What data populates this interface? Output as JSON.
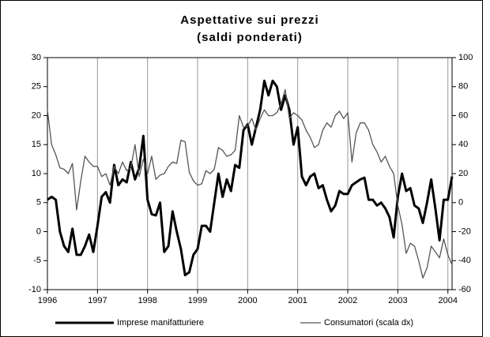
{
  "chart_data": {
    "type": "line",
    "title": "Aspettative sui prezzi",
    "subtitle": "(saldi ponderati)",
    "x": [
      0,
      1,
      2,
      3,
      4,
      5,
      6,
      7,
      8,
      9,
      10,
      11,
      12,
      13,
      14,
      15,
      16,
      17,
      18,
      19,
      20,
      21,
      22,
      23,
      24,
      25,
      26,
      27,
      28,
      29,
      30,
      31,
      32,
      33,
      34,
      35,
      36,
      37,
      38,
      39,
      40,
      41,
      42,
      43,
      44,
      45,
      46,
      47,
      48,
      49,
      50,
      51,
      52,
      53,
      54,
      55,
      56,
      57,
      58,
      59,
      60,
      61,
      62,
      63,
      64,
      65,
      66,
      67,
      68,
      69,
      70,
      71,
      72,
      73,
      74,
      75,
      76,
      77,
      78,
      79,
      80,
      81,
      82,
      83,
      84,
      85,
      86,
      87,
      88,
      89,
      90,
      91,
      92,
      93,
      94,
      95,
      96,
      97
    ],
    "xlim": [
      0,
      97
    ],
    "xticks": [
      {
        "value": 0,
        "label": "1996"
      },
      {
        "value": 12,
        "label": "1997"
      },
      {
        "value": 24,
        "label": "1998"
      },
      {
        "value": 36,
        "label": "1999"
      },
      {
        "value": 48,
        "label": "2000"
      },
      {
        "value": 60,
        "label": "2001"
      },
      {
        "value": 72,
        "label": "2002"
      },
      {
        "value": 84,
        "label": "2003"
      },
      {
        "value": 96,
        "label": "2004"
      }
    ],
    "ylim": [
      -10,
      30
    ],
    "yticks": [
      -10,
      -5,
      0,
      5,
      10,
      15,
      20,
      25,
      30
    ],
    "y2lim": [
      -60,
      100
    ],
    "y2ticks": [
      -60,
      -40,
      -20,
      0,
      20,
      40,
      60,
      80,
      100
    ],
    "grid": true,
    "legend": "bottom",
    "series": [
      {
        "name": "Imprese manifatturiere",
        "color": "#000000",
        "width": 3,
        "values": [
          5.5,
          6,
          5.5,
          0,
          -2.5,
          -3.5,
          0.5,
          -4,
          -4,
          -2.5,
          -0.5,
          -3.5,
          1,
          6,
          6.8,
          5,
          11.5,
          8,
          9,
          8.5,
          12,
          9,
          11,
          16.5,
          5.5,
          3,
          2.8,
          5,
          -3.5,
          -2.5,
          3.5,
          0,
          -3,
          -7.5,
          -7,
          -4,
          -3,
          1,
          1,
          0,
          5,
          10,
          6,
          9,
          7,
          11.5,
          11,
          17.5,
          18.5,
          15,
          18,
          21,
          26,
          23.5,
          26,
          25,
          21,
          23.5,
          21,
          15,
          18,
          9.5,
          8,
          9.5,
          10,
          7.5,
          8,
          5.5,
          3.5,
          4.5,
          7,
          6.5,
          6.5,
          8,
          8.5,
          9,
          9.3,
          5.5,
          5.5,
          4.5,
          5,
          4,
          2.5,
          -1,
          6,
          10,
          7,
          7.5,
          4.5,
          4,
          1.5,
          5,
          9,
          4,
          -1.5,
          5.5,
          5.5,
          9.5
        ]
      },
      {
        "name": "Consumatori (scala dx)",
        "color": "#555555",
        "width": 1.3,
        "axis": "y2",
        "values": [
          64,
          40,
          33,
          24,
          23,
          20,
          27,
          -5,
          15,
          32,
          28,
          25,
          25,
          18,
          20,
          12,
          25,
          20,
          28,
          22,
          24,
          40,
          18,
          30,
          20,
          32,
          16,
          19,
          20,
          25,
          28,
          27,
          43,
          42,
          21,
          15,
          12,
          13,
          22,
          20,
          23,
          38,
          36,
          32,
          33,
          36,
          60,
          52,
          53,
          58,
          50,
          58,
          64,
          60,
          60,
          62,
          68,
          78,
          58,
          62,
          60,
          57,
          50,
          45,
          38,
          40,
          50,
          55,
          52,
          60,
          63,
          58,
          62,
          28,
          48,
          55,
          55,
          50,
          40,
          35,
          28,
          32,
          25,
          20,
          -2,
          -15,
          -35,
          -28,
          -30,
          -40,
          -52,
          -45,
          -30,
          -34,
          -38,
          -25,
          -36,
          -43
        ]
      }
    ]
  }
}
